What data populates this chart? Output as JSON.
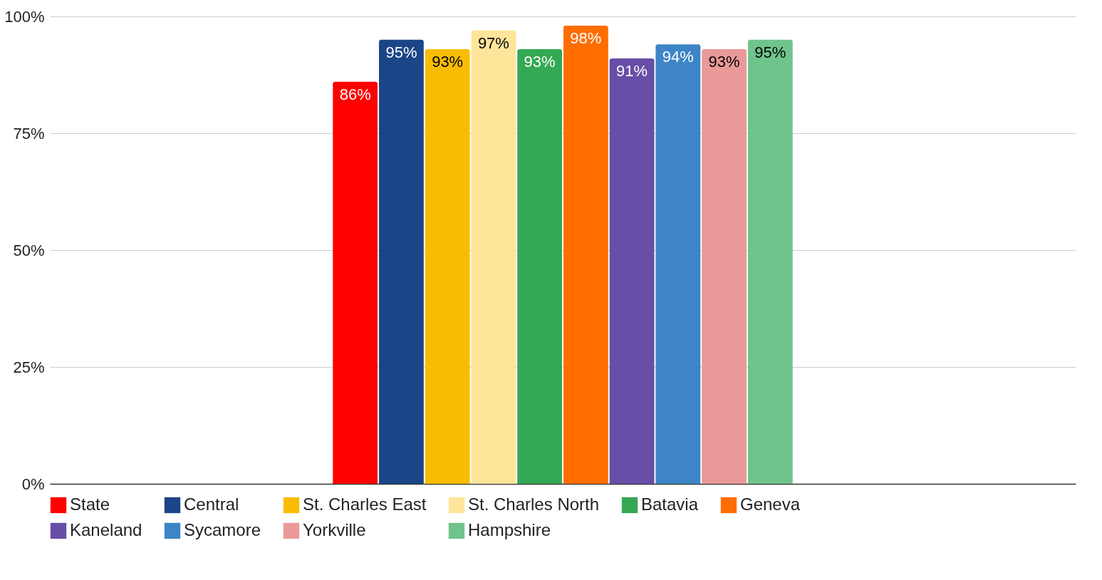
{
  "chart_data": {
    "type": "bar",
    "categories": [
      null
    ],
    "series": [
      {
        "name": "State",
        "color": "#ff0000",
        "values": [
          86
        ],
        "value_labels": [
          "86%"
        ]
      },
      {
        "name": "Central",
        "color": "#1c4587",
        "values": [
          95
        ],
        "value_labels": [
          "95%"
        ]
      },
      {
        "name": "St. Charles East",
        "color": "#f9bc02",
        "values": [
          93
        ],
        "value_labels": [
          "93%"
        ]
      },
      {
        "name": "St. Charles North",
        "color": "#ffe599",
        "values": [
          97
        ],
        "value_labels": [
          "97%"
        ]
      },
      {
        "name": "Batavia",
        "color": "#34a853",
        "values": [
          93
        ],
        "value_labels": [
          "93%"
        ]
      },
      {
        "name": "Geneva",
        "color": "#ff6d01",
        "values": [
          98
        ],
        "value_labels": [
          "98%"
        ]
      },
      {
        "name": "Kaneland",
        "color": "#674ea7",
        "values": [
          91
        ],
        "value_labels": [
          "91%"
        ]
      },
      {
        "name": "Sycamore",
        "color": "#3d85c6",
        "values": [
          94
        ],
        "value_labels": [
          "94%"
        ]
      },
      {
        "name": "Yorkville",
        "color": "#ea9999",
        "values": [
          93
        ],
        "value_labels": [
          "93%"
        ]
      },
      {
        "name": "Hampshire",
        "color": "#6fc48c",
        "values": [
          95
        ],
        "value_labels": [
          "95%"
        ]
      }
    ],
    "ylim": [
      0,
      100
    ],
    "yticks": [
      {
        "value": 0,
        "label": "0%"
      },
      {
        "value": 25,
        "label": "25%"
      },
      {
        "value": 50,
        "label": "50%"
      },
      {
        "value": 75,
        "label": "75%"
      },
      {
        "value": 100,
        "label": "100%"
      }
    ],
    "grid": "y",
    "legend": "bottom"
  }
}
